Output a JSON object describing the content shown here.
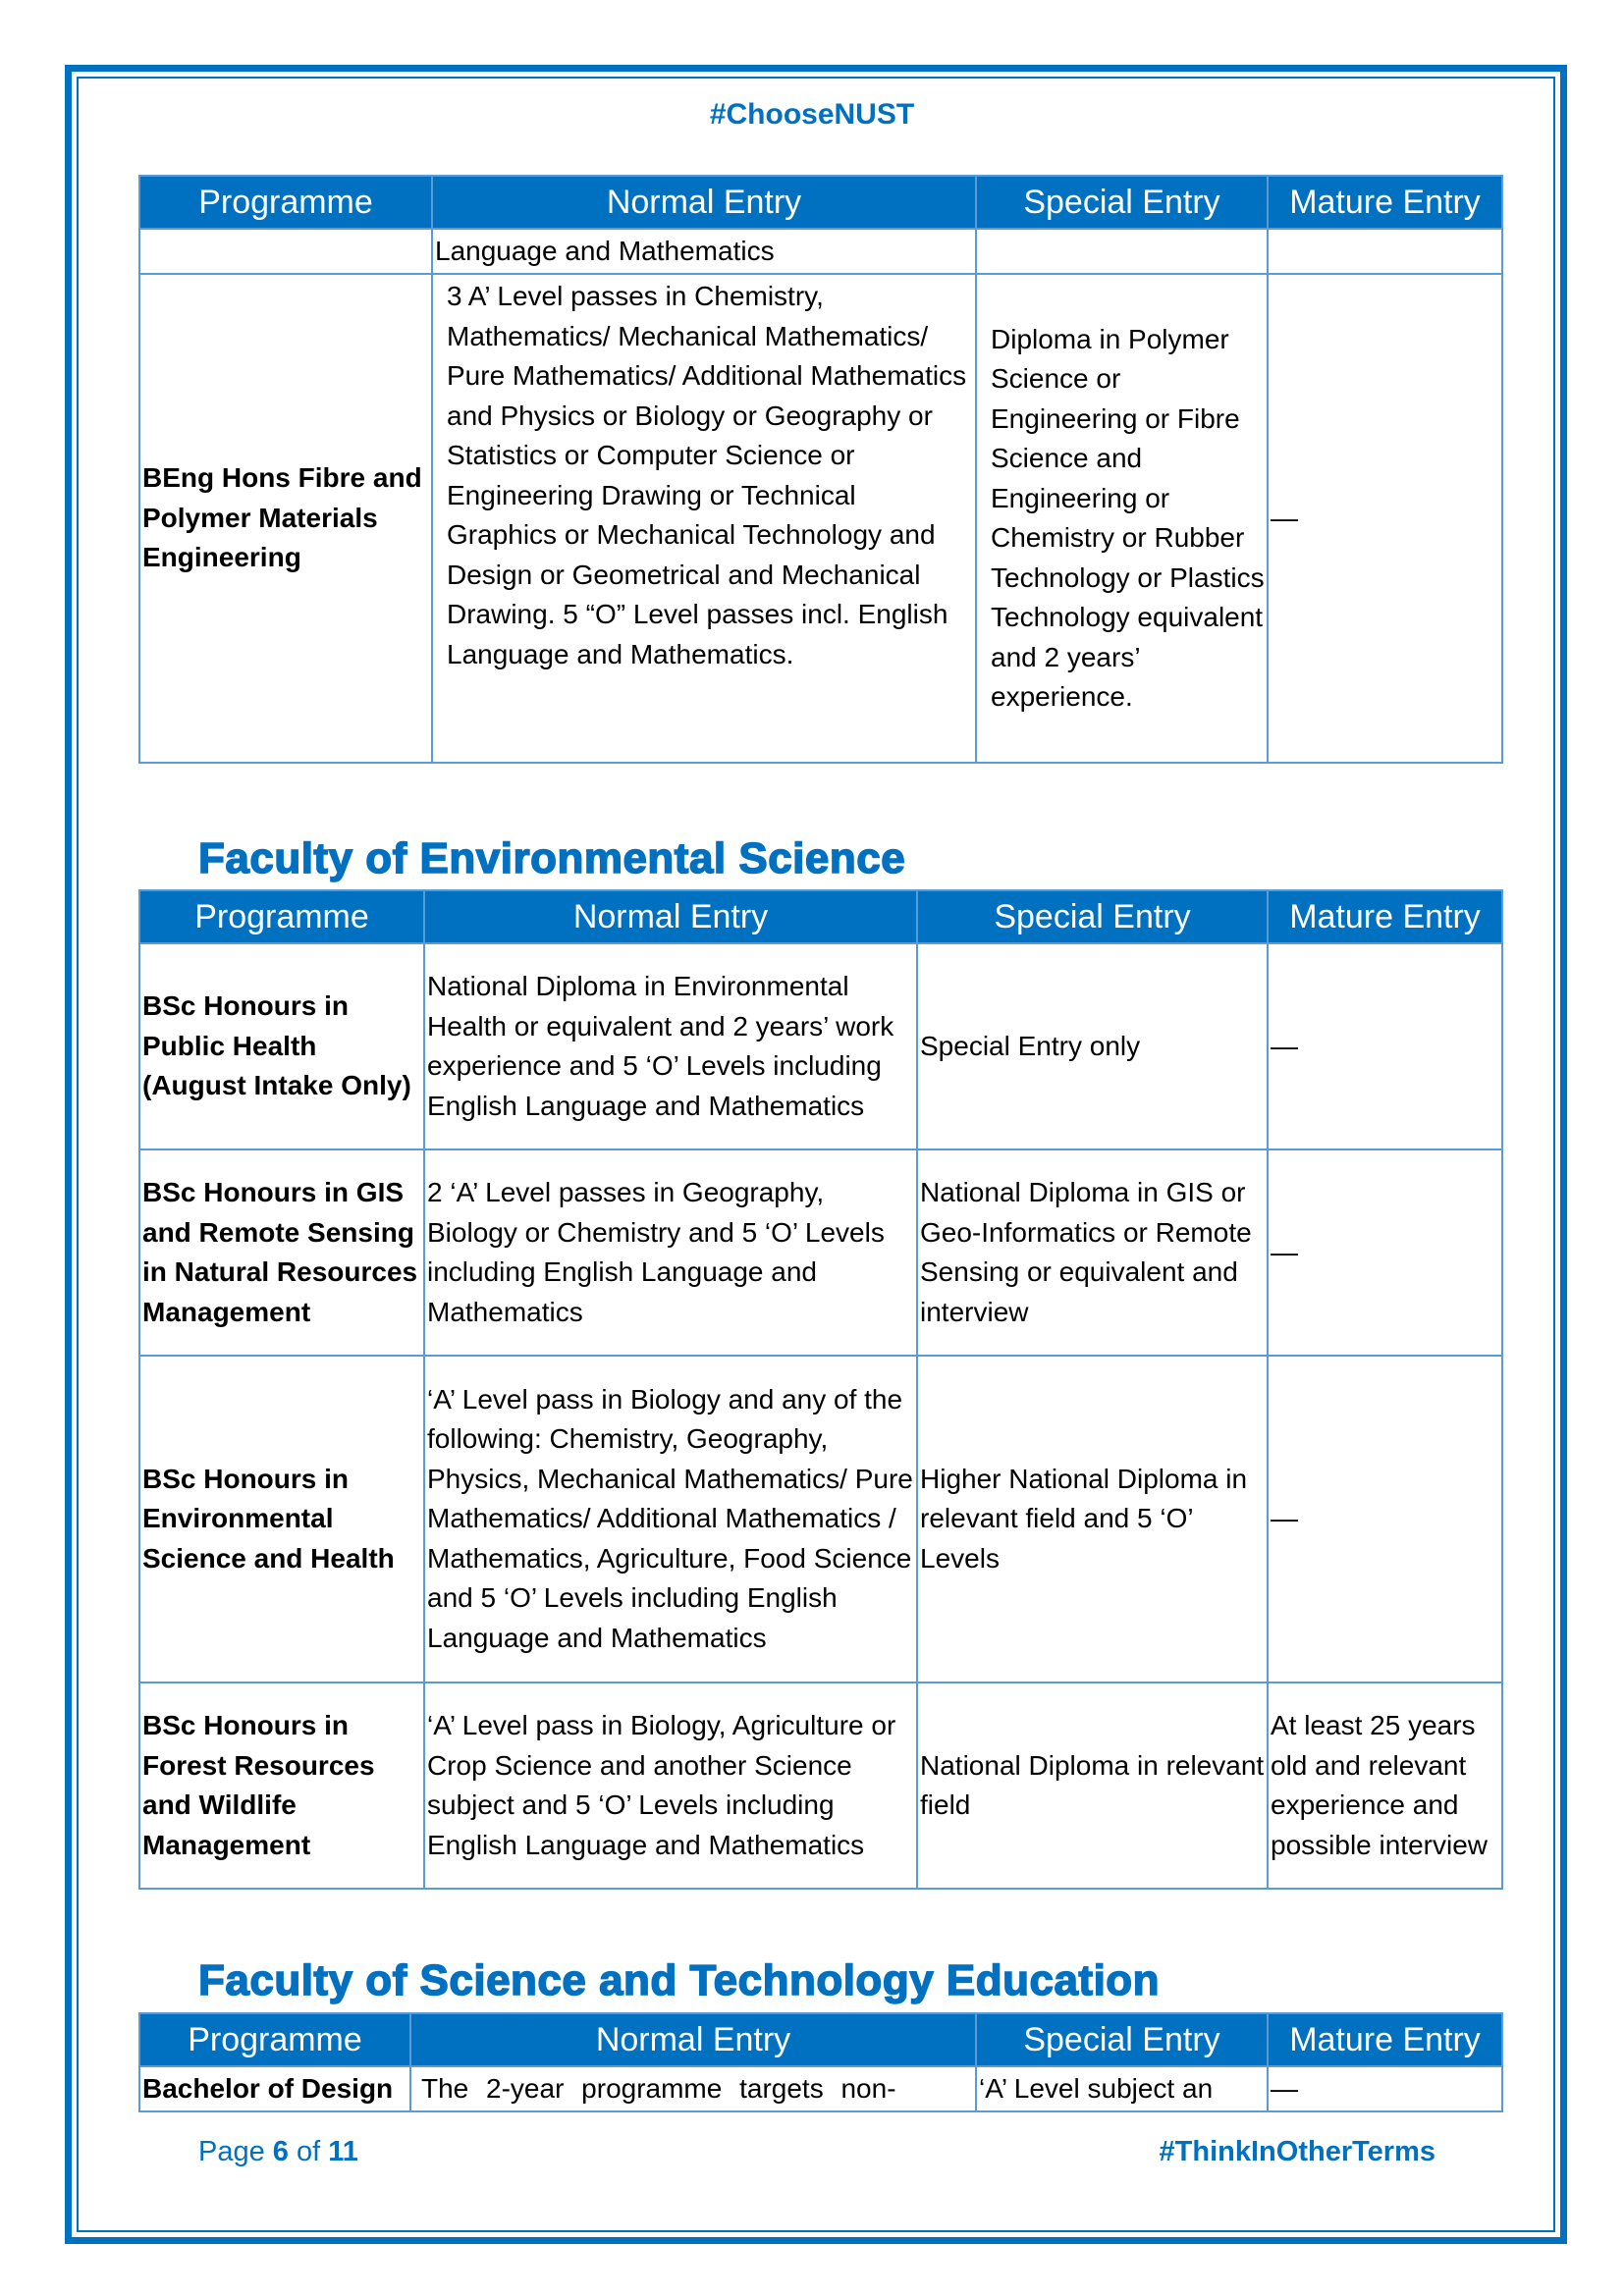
{
  "header": {
    "hashtag": "#ChooseNUST"
  },
  "columns": [
    "Programme",
    "Normal Entry",
    "Special Entry",
    "Mature Entry"
  ],
  "table1": {
    "rows": [
      {
        "programme": "",
        "normal": "Language and Mathematics",
        "special": "",
        "mature": ""
      },
      {
        "programme": "BEng Hons Fibre and Polymer Materials Engineering",
        "normal": "3 A’ Level passes in Chemistry, Mathematics/ Mechanical Mathematics/ Pure Mathematics/ Additional Mathematics and Physics or Biology or Geography or Statistics or Computer Science or Engineering Drawing or Technical Graphics or Mechanical Technology and Design or Geometrical and Mechanical Drawing. 5 “O” Level passes incl. English Language and Mathematics.",
        "special": "Diploma in Polymer Science or Engineering or Fibre Science and Engineering or Chemistry or Rubber Technology or Plastics Technology equivalent and 2 years’ experience.",
        "mature": "—"
      }
    ]
  },
  "faculty_env": {
    "title": "Faculty of Environmental Science",
    "rows": [
      {
        "programme": "BSc Honours in Public Health (August Intake Only)",
        "normal": "National Diploma in Environmental Health or equivalent and 2 years’ work experience and 5 ‘O’ Levels including English Language and Mathematics",
        "special": "Special Entry only",
        "mature": "—"
      },
      {
        "programme": "BSc Honours in GIS and Remote Sensing in Natural Resources Management",
        "normal": "2 ‘A’ Level passes in Geography, Biology or Chemistry and 5 ‘O’ Levels including English Language and Mathematics",
        "special": "National Diploma in GIS or Geo-Informatics or Remote Sensing or equivalent and interview",
        "mature": "—"
      },
      {
        "programme": "BSc Honours in Environmental Science and Health",
        "normal": "‘A’ Level pass in Biology and any of the following: Chemistry, Geography, Physics,  Mechanical Mathematics/ Pure Mathematics/ Additional Mathematics / Mathematics, Agriculture, Food Science and 5 ‘O’ Levels including English Language and Mathematics",
        "special": "Higher National Diploma in relevant field and 5 ‘O’ Levels",
        "mature": "—"
      },
      {
        "programme": "BSc Honours in Forest Resources and Wildlife Management",
        "normal": "‘A’ Level pass in Biology, Agriculture or Crop Science and another Science subject and 5 ‘O’ Levels including English Language and Mathematics",
        "special": "National Diploma in relevant field",
        "mature": "At least 25 years old and relevant experience and possible interview"
      }
    ]
  },
  "faculty_ste": {
    "title": "Faculty of Science and Technology Education",
    "rows": [
      {
        "programme": "Bachelor of Design",
        "normal": "The 2-year programme targets non-",
        "special": "‘A’ Level subject an",
        "mature": "—"
      }
    ]
  },
  "footer": {
    "page_label": "Page",
    "page_current": "6",
    "page_of": "of",
    "page_total": "11",
    "hashtag": "#ThinkInOtherTerms"
  },
  "colors": {
    "brand": "#0070c0",
    "border": "#5b9bd5"
  }
}
